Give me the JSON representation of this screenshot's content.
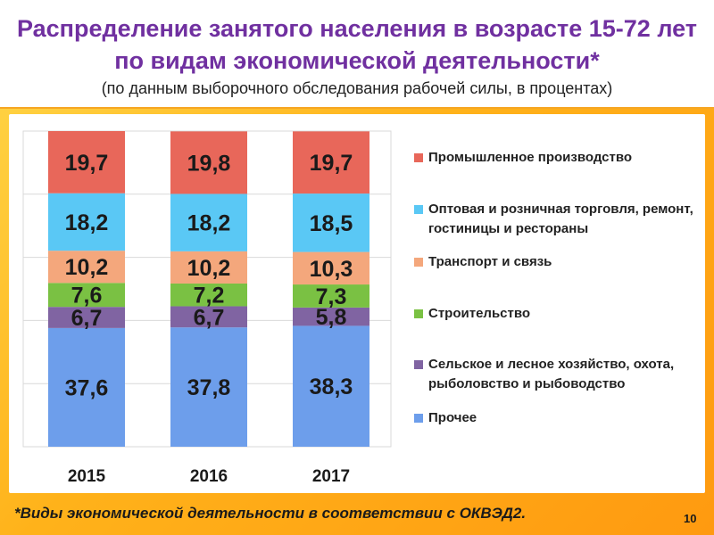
{
  "header": {
    "title_line1": "Распределение занятого населения в возрасте 15-72 лет",
    "title_line2": "по видам экономической деятельности*",
    "subtitle": "(по данным выборочного обследования рабочей силы, в процентах)"
  },
  "chart_data": {
    "type": "bar",
    "stacked": true,
    "categories": [
      "2015",
      "2016",
      "2017"
    ],
    "ylim": [
      0,
      100
    ],
    "grid": true,
    "legend_position": "right",
    "series": [
      {
        "name": "Прочее",
        "color": "#6d9eeb",
        "values": [
          37.6,
          37.8,
          38.3
        ],
        "labels": [
          "37,6",
          "37,8",
          "38,3"
        ]
      },
      {
        "name": "Сельское и лесное хозяйство, охота, рыболовство и рыбоводство",
        "color": "#8064a2",
        "values": [
          6.7,
          6.7,
          5.8
        ],
        "labels": [
          "6,7",
          "6,7",
          "5,8"
        ]
      },
      {
        "name": "Строительство",
        "color": "#7ac143",
        "values": [
          7.6,
          7.2,
          7.3
        ],
        "labels": [
          "7,6",
          "7,2",
          "7,3"
        ]
      },
      {
        "name": "Транспорт и связь",
        "color": "#f4a77c",
        "values": [
          10.2,
          10.2,
          10.3
        ],
        "labels": [
          "10,2",
          "10,2",
          "10,3"
        ]
      },
      {
        "name": "Оптовая и розничная торговля, ремонт, гостиницы и рестораны",
        "color": "#5ac8f5",
        "values": [
          18.2,
          18.2,
          18.5
        ],
        "labels": [
          "18,2",
          "18,2",
          "18,5"
        ]
      },
      {
        "name": "Промышленное производство",
        "color": "#e8675a",
        "values": [
          19.7,
          19.8,
          19.7
        ],
        "labels": [
          "19,7",
          "19,8",
          "19,7"
        ]
      }
    ]
  },
  "legend": {
    "items": [
      {
        "label": "Промышленное производство",
        "color": "#e8675a"
      },
      {
        "label": "Оптовая и розничная торговля, ремонт, гостиницы и рестораны",
        "color": "#5ac8f5"
      },
      {
        "label": "Транспорт и связь",
        "color": "#f4a77c"
      },
      {
        "label": "Строительство",
        "color": "#7ac143"
      },
      {
        "label": "Сельское и лесное хозяйство, охота, рыболовство и рыбоводство",
        "color": "#8064a2"
      },
      {
        "label": "Прочее",
        "color": "#6d9eeb"
      }
    ]
  },
  "footer": {
    "note": "*Виды экономической деятельности в соответствии с ОКВЭД2.",
    "page_number": "10"
  }
}
